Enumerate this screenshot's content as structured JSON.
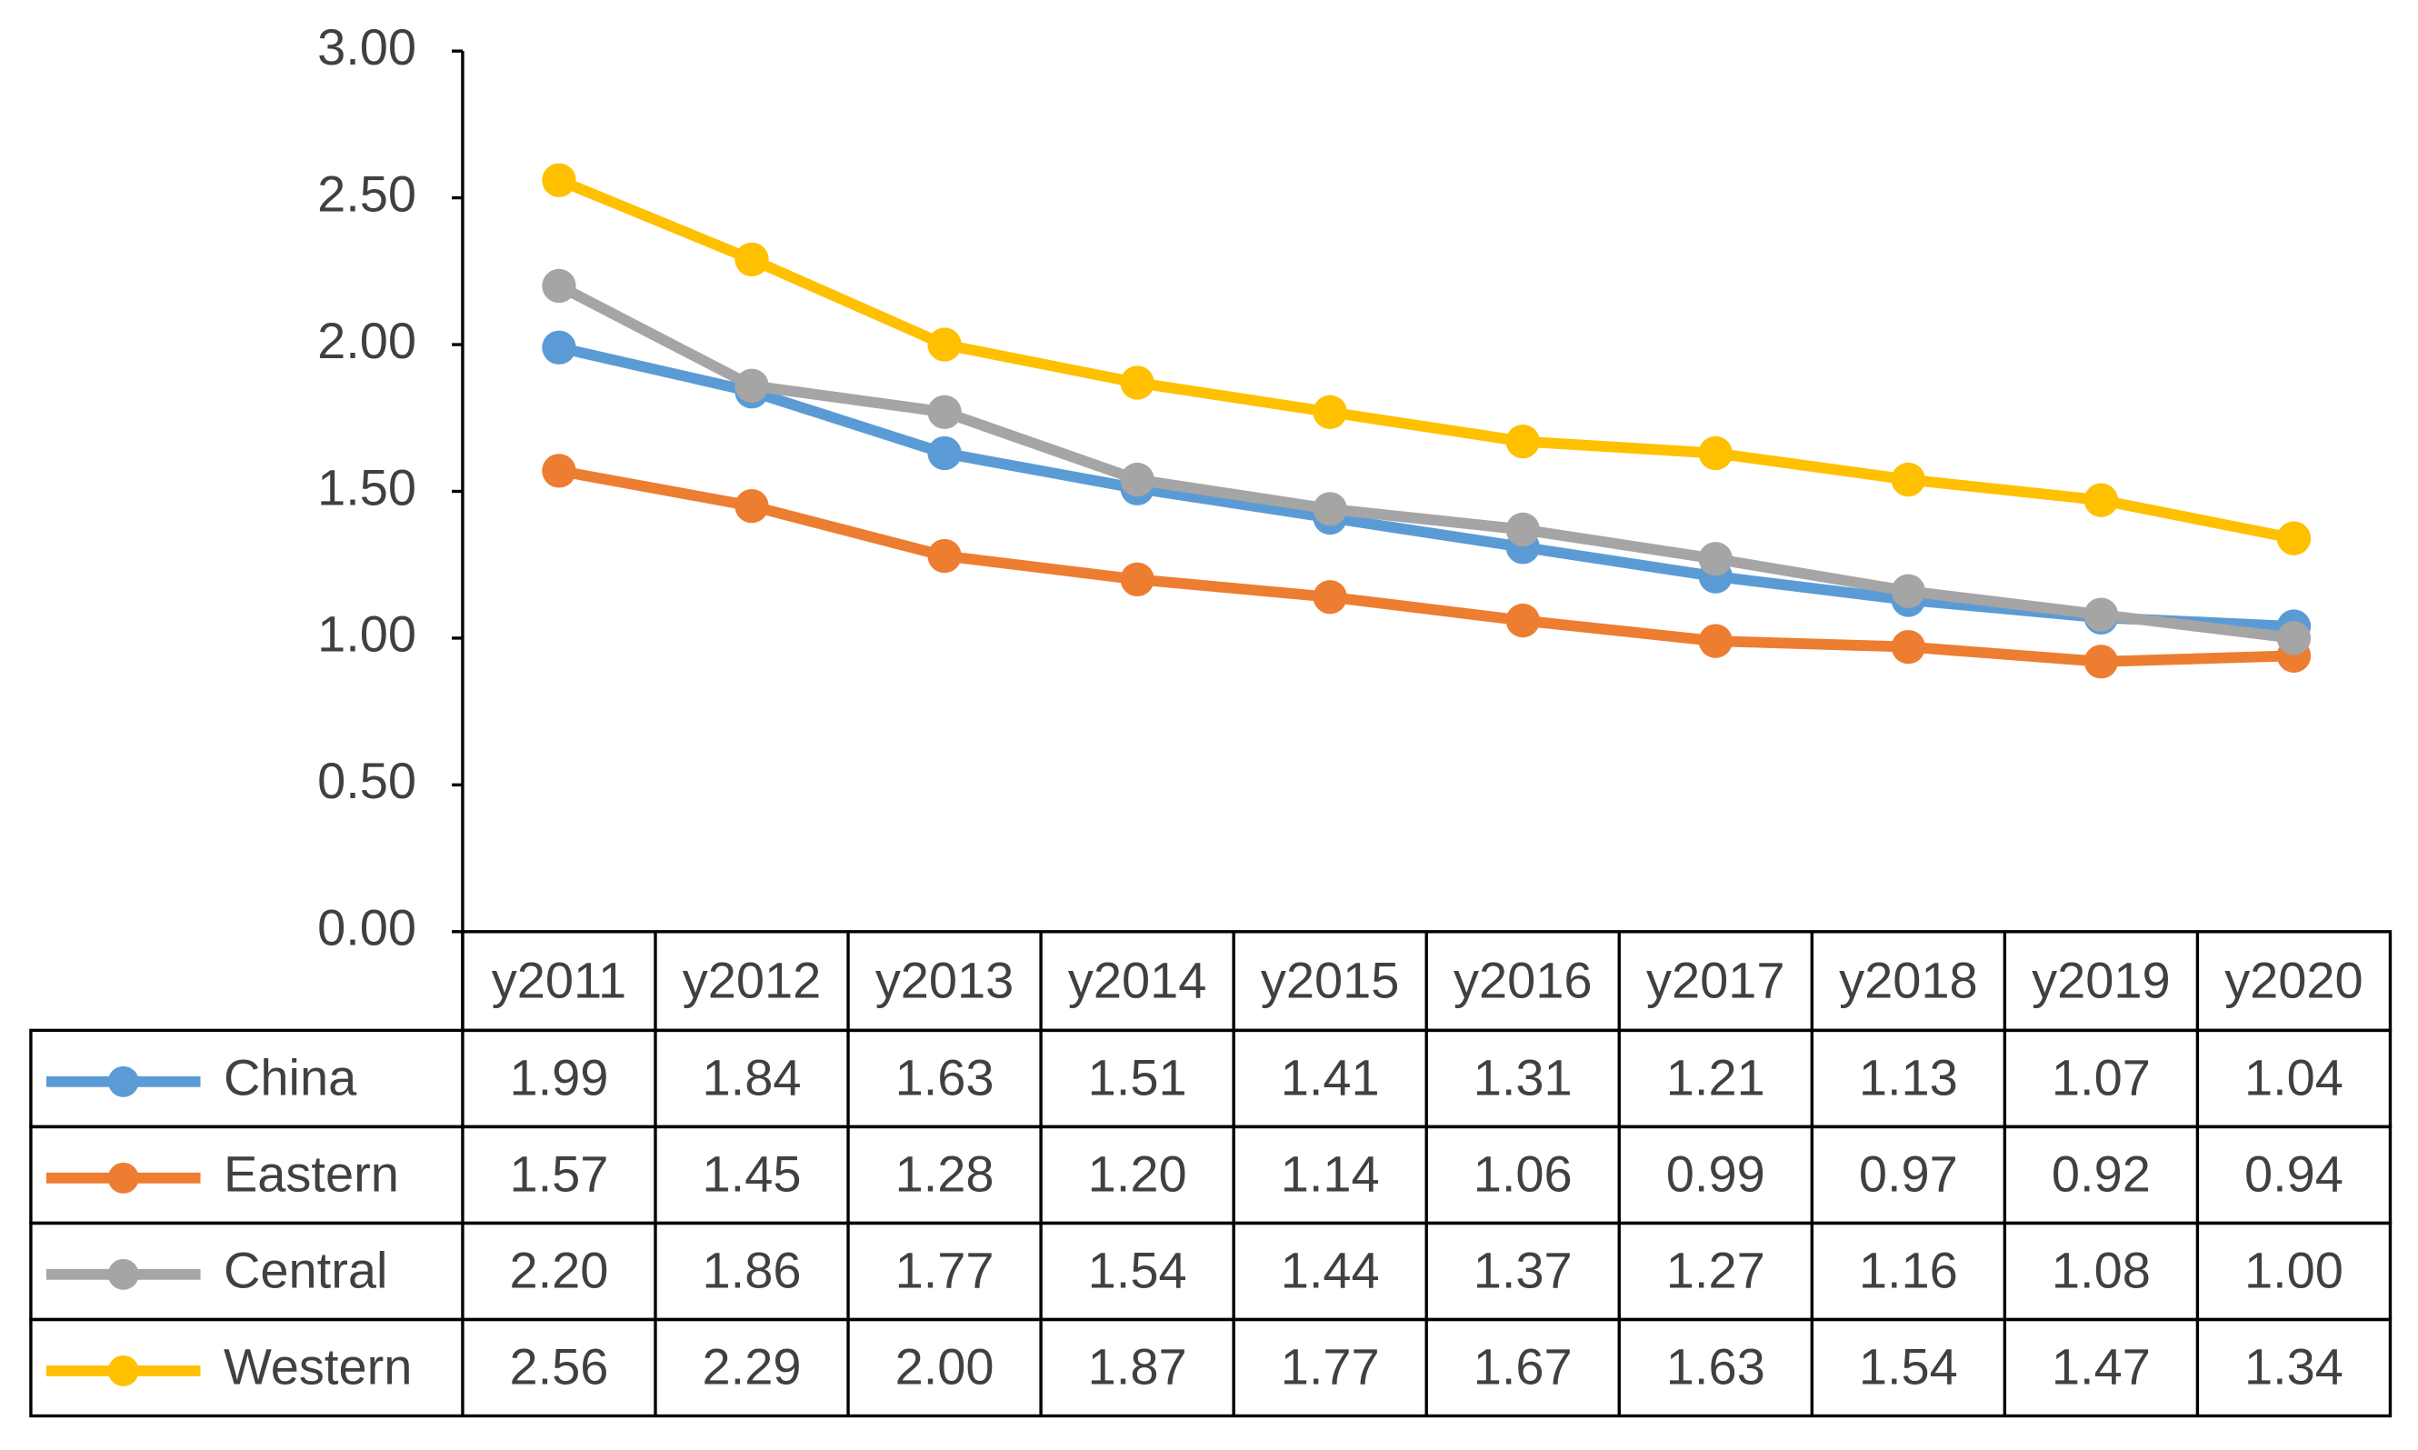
{
  "chart_data": {
    "type": "line",
    "categories": [
      "y2011",
      "y2012",
      "y2013",
      "y2014",
      "y2015",
      "y2016",
      "y2017",
      "y2018",
      "y2019",
      "y2020"
    ],
    "series": [
      {
        "name": "China",
        "color": "#5b9bd5",
        "values": [
          1.99,
          1.84,
          1.63,
          1.51,
          1.41,
          1.31,
          1.21,
          1.13,
          1.07,
          1.04
        ],
        "value_labels": [
          "1.99",
          "1.84",
          "1.63",
          "1.51",
          "1.41",
          "1.31",
          "1.21",
          "1.13",
          "1.07",
          "1.04"
        ]
      },
      {
        "name": "Eastern",
        "color": "#ed7d31",
        "values": [
          1.57,
          1.45,
          1.28,
          1.2,
          1.14,
          1.06,
          0.99,
          0.97,
          0.92,
          0.94
        ],
        "value_labels": [
          "1.57",
          "1.45",
          "1.28",
          "1.20",
          "1.14",
          "1.06",
          "0.99",
          "0.97",
          "0.92",
          "0.94"
        ]
      },
      {
        "name": "Central",
        "color": "#a5a5a5",
        "values": [
          2.2,
          1.86,
          1.77,
          1.54,
          1.44,
          1.37,
          1.27,
          1.16,
          1.08,
          1.0
        ],
        "value_labels": [
          "2.20",
          "1.86",
          "1.77",
          "1.54",
          "1.44",
          "1.37",
          "1.27",
          "1.16",
          "1.08",
          "1.00"
        ]
      },
      {
        "name": "Western",
        "color": "#ffc000",
        "values": [
          2.56,
          2.29,
          2.0,
          1.87,
          1.77,
          1.67,
          1.63,
          1.54,
          1.47,
          1.34
        ],
        "value_labels": [
          "2.56",
          "2.29",
          "2.00",
          "1.87",
          "1.77",
          "1.67",
          "1.63",
          "1.54",
          "1.47",
          "1.34"
        ]
      }
    ],
    "ylim": [
      0,
      3
    ],
    "yticks": [
      {
        "value": 0,
        "label": "0.00"
      },
      {
        "value": 0.5,
        "label": "0.50"
      },
      {
        "value": 1,
        "label": "1.00"
      },
      {
        "value": 1.5,
        "label": "1.50"
      },
      {
        "value": 2,
        "label": "2.00"
      },
      {
        "value": 2.5,
        "label": "2.50"
      },
      {
        "value": 3,
        "label": "3.00"
      }
    ],
    "grid": false
  }
}
